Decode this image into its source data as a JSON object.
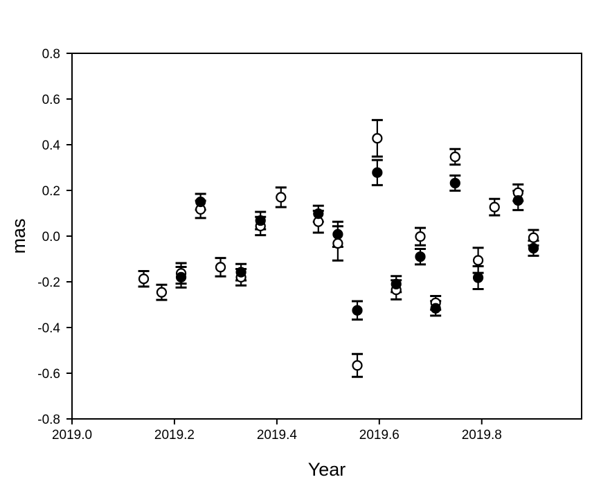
{
  "figure": {
    "background": "#ffffff",
    "axis_color": "#000000",
    "marker_outline_color": "#000000",
    "open_marker_fill": "#ffffff",
    "filled_marker_fill": "#000000"
  },
  "chart_data": {
    "type": "scatter",
    "title": "",
    "xlabel": "Year",
    "ylabel": "mas",
    "xlim": [
      2019.0,
      2019.995
    ],
    "ylim": [
      -0.8,
      0.8
    ],
    "xtick_values": [
      2019.0,
      2019.2,
      2019.4,
      2019.6,
      2019.8
    ],
    "xtick_labels": [
      "2019.0",
      "2019.2",
      "2019.4",
      "2019.6",
      "2019.8"
    ],
    "ytick_values": [
      -0.8,
      -0.6,
      -0.4,
      -0.2,
      0.0,
      0.2,
      0.4,
      0.6,
      0.8
    ],
    "ytick_labels": [
      "-0.8",
      "-0.6",
      "-0.4",
      "-0.2",
      "0.0",
      "0.2",
      "0.4",
      "0.6",
      "0.8"
    ],
    "grid": false,
    "legend": false,
    "error_bars": true,
    "series": [
      {
        "name": "open-circles",
        "marker": "open-circle",
        "color": "#000000",
        "fill": "#ffffff",
        "points": [
          {
            "x": 2019.14,
            "y": -0.187,
            "e": 0.034
          },
          {
            "x": 2019.175,
            "y": -0.246,
            "e": 0.033
          },
          {
            "x": 2019.213,
            "y": -0.163,
            "e": 0.045
          },
          {
            "x": 2019.251,
            "y": 0.117,
            "e": 0.038
          },
          {
            "x": 2019.29,
            "y": -0.136,
            "e": 0.04
          },
          {
            "x": 2019.33,
            "y": -0.18,
            "e": 0.036
          },
          {
            "x": 2019.368,
            "y": 0.044,
            "e": 0.04
          },
          {
            "x": 2019.408,
            "y": 0.17,
            "e": 0.043
          },
          {
            "x": 2019.481,
            "y": 0.063,
            "e": 0.048
          },
          {
            "x": 2019.519,
            "y": -0.032,
            "e": 0.075
          },
          {
            "x": 2019.557,
            "y": -0.566,
            "e": 0.05
          },
          {
            "x": 2019.596,
            "y": 0.428,
            "e": 0.08
          },
          {
            "x": 2019.633,
            "y": -0.235,
            "e": 0.042
          },
          {
            "x": 2019.68,
            "y": -0.002,
            "e": 0.038
          },
          {
            "x": 2019.71,
            "y": -0.292,
            "e": 0.03
          },
          {
            "x": 2019.748,
            "y": 0.347,
            "e": 0.034
          },
          {
            "x": 2019.793,
            "y": -0.106,
            "e": 0.055
          },
          {
            "x": 2019.825,
            "y": 0.127,
            "e": 0.036
          },
          {
            "x": 2019.871,
            "y": 0.19,
            "e": 0.036
          },
          {
            "x": 2019.901,
            "y": -0.007,
            "e": 0.034
          }
        ]
      },
      {
        "name": "filled-circles",
        "marker": "filled-circle",
        "color": "#000000",
        "fill": "#000000",
        "points": [
          {
            "x": 2019.213,
            "y": -0.18,
            "e": 0.045
          },
          {
            "x": 2019.251,
            "y": 0.15,
            "e": 0.035
          },
          {
            "x": 2019.33,
            "y": -0.158,
            "e": 0.036
          },
          {
            "x": 2019.368,
            "y": 0.068,
            "e": 0.038
          },
          {
            "x": 2019.481,
            "y": 0.098,
            "e": 0.035
          },
          {
            "x": 2019.519,
            "y": 0.008,
            "e": 0.055
          },
          {
            "x": 2019.557,
            "y": -0.325,
            "e": 0.04
          },
          {
            "x": 2019.596,
            "y": 0.278,
            "e": 0.055
          },
          {
            "x": 2019.633,
            "y": -0.21,
            "e": 0.035
          },
          {
            "x": 2019.68,
            "y": -0.09,
            "e": 0.034
          },
          {
            "x": 2019.71,
            "y": -0.316,
            "e": 0.032
          },
          {
            "x": 2019.748,
            "y": 0.232,
            "e": 0.033
          },
          {
            "x": 2019.793,
            "y": -0.182,
            "e": 0.05
          },
          {
            "x": 2019.871,
            "y": 0.156,
            "e": 0.042
          },
          {
            "x": 2019.901,
            "y": -0.053,
            "e": 0.033
          }
        ]
      }
    ]
  }
}
